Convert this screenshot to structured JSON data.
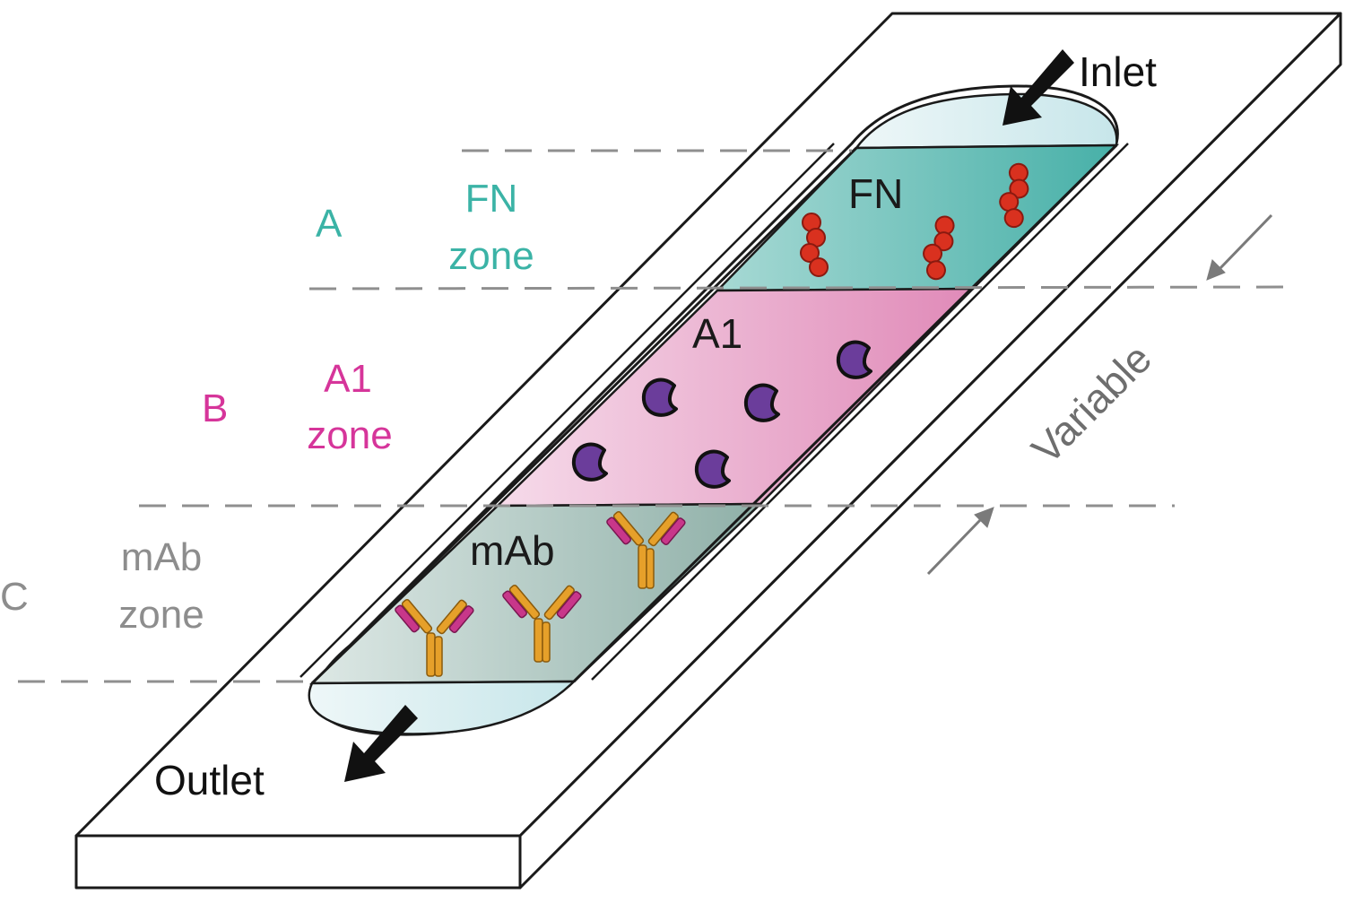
{
  "labels": {
    "inlet": "Inlet",
    "outlet": "Outlet",
    "variable": "Variable",
    "inner_fn": "FN",
    "inner_a1": "A1",
    "inner_mab": "mAb"
  },
  "zones": [
    {
      "letter": "A",
      "name": "FN",
      "word": "zone",
      "color": "#3bb3a6"
    },
    {
      "letter": "B",
      "name": "A1",
      "word": "zone",
      "color": "#d6359a"
    },
    {
      "letter": "C",
      "name": "mAb",
      "word": "zone",
      "color": "#8d8d8d"
    }
  ],
  "colors": {
    "fn_zone": "#5cbdb5",
    "a1_zone": "#e7a3c6",
    "mab_zone": "#a9c1ba",
    "channel_end": "#d4ebee",
    "fn_molecule": "#d9311f",
    "a1_cell": "#6b3d9b",
    "antibody_heavy": "#e6a02a",
    "antibody_light": "#c8378a",
    "outline": "#1a1a1a",
    "guide_dash": "#8f8f8f"
  },
  "icons": {
    "fn_molecule": "fibronectin-chain-icon",
    "a1_cell": "cell-icon",
    "antibody": "antibody-y-icon",
    "flow_arrow": "flow-arrow-icon"
  }
}
